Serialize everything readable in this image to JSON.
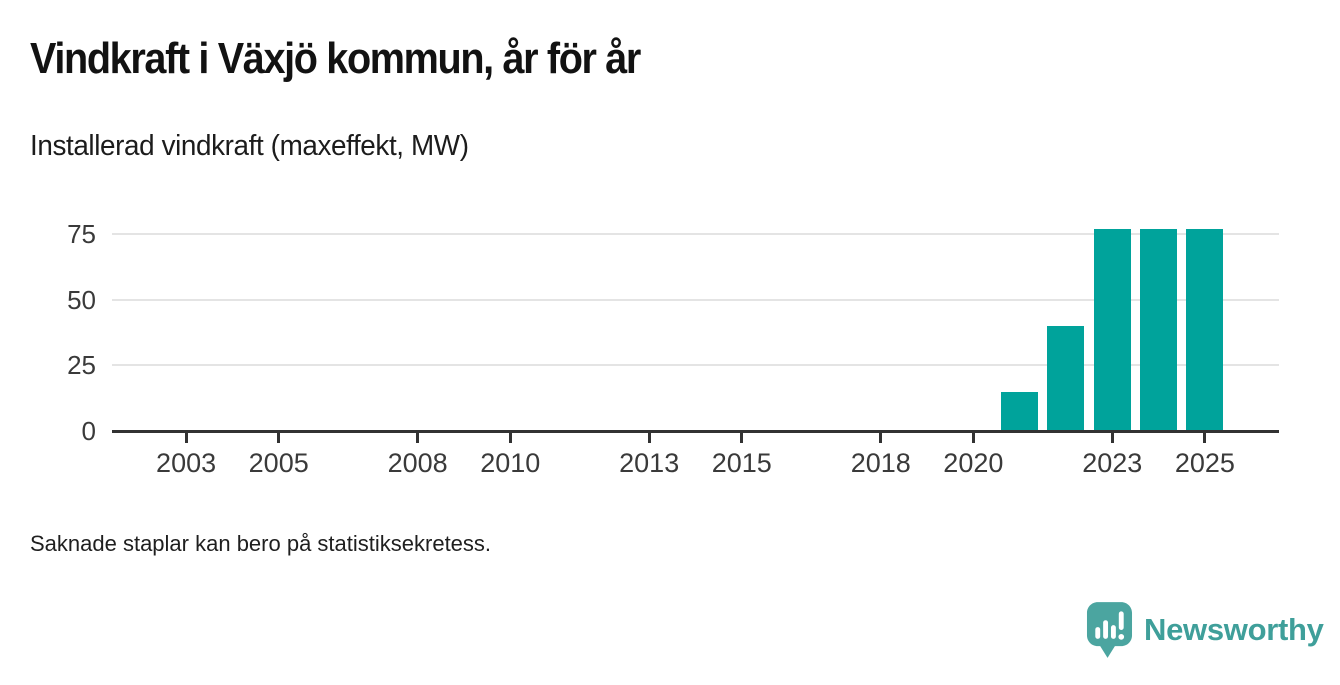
{
  "header": {
    "title": "Vindkraft i Växjö kommun, år för år",
    "subtitle": "Installerad vindkraft (maxeffekt, MW)"
  },
  "footnote": "Saknade staplar kan bero på statistiksekretess.",
  "brand": {
    "name": "Newsworthy",
    "icon": "speech-bubble-bar-chart-icon",
    "text_color": "#3f9f9a",
    "icon_color": "#4ba5a0"
  },
  "chart_data": {
    "type": "bar",
    "title": "Vindkraft i Växjö kommun, år för år",
    "subtitle": "Installerad vindkraft (maxeffekt, MW)",
    "x": [
      2021,
      2022,
      2023,
      2024,
      2025
    ],
    "values": [
      15,
      40,
      77,
      77,
      77
    ],
    "bar_color": "#00a39b",
    "x_ticks": [
      2003,
      2005,
      2008,
      2010,
      2013,
      2015,
      2018,
      2020,
      2023,
      2025
    ],
    "x_domain": [
      2001.4,
      2026.6
    ],
    "y_ticks": [
      0,
      25,
      50,
      75
    ],
    "ylim": [
      0,
      86
    ],
    "grid": "horizontal-only",
    "legend": "none",
    "axis_color": "#323232",
    "gridline_color": "#e4e4e4"
  }
}
